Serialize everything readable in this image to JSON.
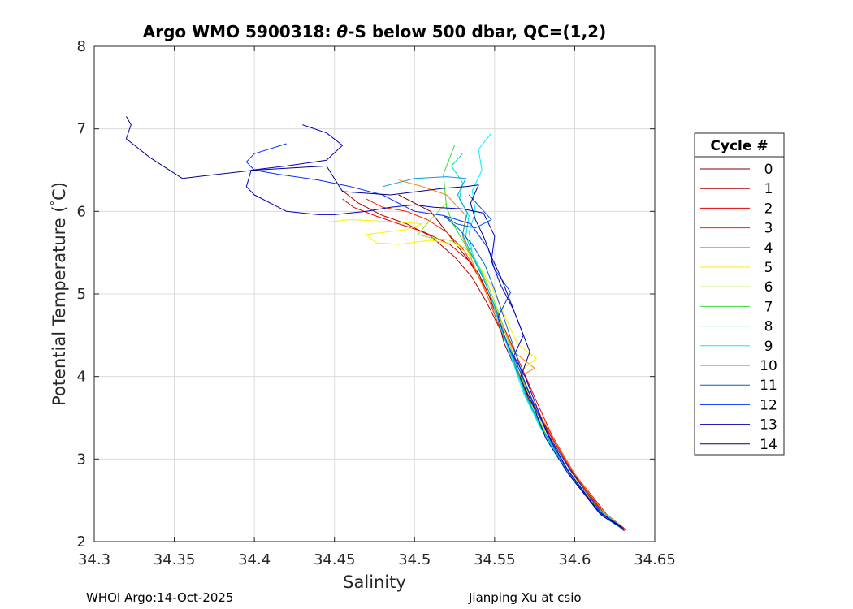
{
  "chart_data": {
    "type": "line",
    "title_prefix": "Argo WMO 5900318: ",
    "title_symbol": "θ",
    "title_suffix": "-S below 500 dbar,  QC=(1,2)",
    "xlabel": "Salinity",
    "ylabel_main": "Potential Temperature (",
    "ylabel_degree": "°",
    "ylabel_unit": "C)",
    "xlim": [
      34.3,
      34.65
    ],
    "ylim": [
      2,
      8
    ],
    "grid": true,
    "xticks": [
      "34.3",
      "34.35",
      "34.4",
      "34.45",
      "34.5",
      "34.55",
      "34.6",
      "34.65"
    ],
    "xtick_values": [
      34.3,
      34.35,
      34.4,
      34.45,
      34.5,
      34.55,
      34.6,
      34.65
    ],
    "yticks": [
      "2",
      "3",
      "4",
      "5",
      "6",
      "7",
      "8"
    ],
    "ytick_values": [
      2,
      3,
      4,
      5,
      6,
      7,
      8
    ],
    "legend_title": "Cycle #",
    "legend_position": "right-outside",
    "series": [
      {
        "name": "0",
        "color": "#800000",
        "x": [
          34.631,
          34.62,
          34.6,
          34.585,
          34.572,
          34.563,
          34.556,
          34.552,
          34.546,
          34.54,
          34.528,
          34.51,
          34.49
        ],
        "y": [
          2.13,
          2.3,
          2.8,
          3.3,
          3.7,
          4.1,
          4.4,
          4.7,
          5.0,
          5.25,
          5.55,
          6.0,
          6.2
        ]
      },
      {
        "name": "1",
        "color": "#b30000",
        "x": [
          34.632,
          34.618,
          34.598,
          34.583,
          34.57,
          34.562,
          34.554,
          34.545,
          34.536,
          34.525,
          34.51,
          34.495,
          34.48,
          34.465,
          34.455
        ],
        "y": [
          2.14,
          2.35,
          2.85,
          3.35,
          3.8,
          4.2,
          4.55,
          4.9,
          5.2,
          5.45,
          5.7,
          5.85,
          5.95,
          6.1,
          6.25
        ]
      },
      {
        "name": "2",
        "color": "#e60000",
        "x": [
          34.631,
          34.62,
          34.6,
          34.586,
          34.575,
          34.566,
          34.558,
          34.55,
          34.542,
          34.534,
          34.522,
          34.506,
          34.49,
          34.475,
          34.462,
          34.455
        ],
        "y": [
          2.16,
          2.33,
          2.82,
          3.28,
          3.75,
          4.15,
          4.5,
          4.85,
          5.15,
          5.4,
          5.6,
          5.75,
          5.85,
          5.95,
          6.05,
          6.15
        ]
      },
      {
        "name": "3",
        "color": "#ff2000",
        "x": [
          34.63,
          34.617,
          34.597,
          34.581,
          34.569,
          34.56,
          34.552,
          34.545,
          34.538,
          34.53,
          34.52,
          34.508,
          34.495,
          34.48,
          34.47
        ],
        "y": [
          2.15,
          2.35,
          2.9,
          3.4,
          3.85,
          4.3,
          4.65,
          5.0,
          5.3,
          5.55,
          5.75,
          5.9,
          6.0,
          6.05,
          6.15
        ]
      },
      {
        "name": "4",
        "color": "#ff8000",
        "x": [
          34.63,
          34.618,
          34.599,
          34.585,
          34.574,
          34.566,
          34.575,
          34.562,
          34.555,
          34.546,
          34.538,
          34.53,
          34.532,
          34.52,
          34.505,
          34.49
        ],
        "y": [
          2.17,
          2.36,
          2.85,
          3.3,
          3.7,
          4.0,
          4.1,
          4.3,
          4.6,
          4.95,
          5.3,
          5.7,
          5.95,
          6.2,
          6.3,
          6.38
        ]
      },
      {
        "name": "5",
        "color": "#ffee00",
        "x": [
          34.629,
          34.616,
          34.596,
          34.582,
          34.572,
          34.566,
          34.576,
          34.564,
          34.556,
          34.548,
          34.538,
          34.526,
          34.51,
          34.49,
          34.476,
          34.47,
          34.495,
          34.505,
          34.48,
          34.46,
          34.445
        ],
        "y": [
          2.18,
          2.36,
          2.86,
          3.32,
          3.72,
          4.06,
          4.22,
          4.4,
          4.75,
          5.1,
          5.4,
          5.6,
          5.65,
          5.6,
          5.62,
          5.72,
          5.78,
          5.85,
          5.88,
          5.9,
          5.87
        ]
      },
      {
        "name": "6",
        "color": "#90e000",
        "x": [
          34.628,
          34.615,
          34.596,
          34.582,
          34.572,
          34.565,
          34.558,
          34.552,
          34.546,
          34.54,
          34.532,
          34.522,
          34.51,
          34.502,
          34.51,
          34.52
        ],
        "y": [
          2.2,
          2.38,
          2.86,
          3.3,
          3.72,
          4.1,
          4.45,
          4.8,
          5.1,
          5.35,
          5.55,
          5.65,
          5.68,
          5.72,
          5.9,
          6.1
        ]
      },
      {
        "name": "7",
        "color": "#30e030",
        "x": [
          34.628,
          34.614,
          34.594,
          34.58,
          34.57,
          34.563,
          34.556,
          34.55,
          34.544,
          34.538,
          34.53,
          34.524,
          34.52,
          34.518,
          34.525
        ],
        "y": [
          2.19,
          2.4,
          2.9,
          3.35,
          3.75,
          4.15,
          4.5,
          4.85,
          5.15,
          5.4,
          5.65,
          5.85,
          6.05,
          6.45,
          6.8
        ]
      },
      {
        "name": "8",
        "color": "#00d8b0",
        "x": [
          34.627,
          34.613,
          34.593,
          34.579,
          34.569,
          34.562,
          34.555,
          34.549,
          34.543,
          34.537,
          34.532,
          34.534,
          34.528,
          34.53,
          34.523,
          34.53
        ],
        "y": [
          2.21,
          2.42,
          2.92,
          3.38,
          3.78,
          4.18,
          4.55,
          4.9,
          5.2,
          5.45,
          5.7,
          5.95,
          6.15,
          6.35,
          6.55,
          6.7
        ]
      },
      {
        "name": "9",
        "color": "#00f0ff",
        "x": [
          34.626,
          34.612,
          34.592,
          34.578,
          34.568,
          34.561,
          34.554,
          34.548,
          34.542,
          34.536,
          34.534,
          34.538,
          34.536,
          34.542,
          34.54,
          34.548
        ],
        "y": [
          2.22,
          2.44,
          2.95,
          3.4,
          3.8,
          4.2,
          4.58,
          4.95,
          5.25,
          5.5,
          5.75,
          6.0,
          6.25,
          6.5,
          6.75,
          6.95
        ]
      },
      {
        "name": "10",
        "color": "#00a0e0",
        "x": [
          34.627,
          34.613,
          34.594,
          34.58,
          34.57,
          34.563,
          34.556,
          34.55,
          34.543,
          34.536,
          34.53,
          34.533,
          34.527,
          34.532,
          34.52,
          34.5,
          34.48
        ],
        "y": [
          2.2,
          2.41,
          2.9,
          3.36,
          3.76,
          4.14,
          4.5,
          4.86,
          5.18,
          5.46,
          5.72,
          5.98,
          6.2,
          6.4,
          6.42,
          6.4,
          6.3
        ]
      },
      {
        "name": "11",
        "color": "#0060d0",
        "x": [
          34.631,
          34.618,
          34.598,
          34.585,
          34.576,
          34.568,
          34.562,
          34.556,
          34.55,
          34.544,
          34.536,
          34.527,
          34.518,
          34.526,
          34.538,
          34.548,
          34.534
        ],
        "y": [
          2.14,
          2.3,
          2.78,
          3.22,
          3.6,
          3.98,
          4.35,
          4.7,
          5.05,
          5.35,
          5.6,
          5.8,
          5.95,
          5.85,
          5.8,
          5.9,
          6.2
        ]
      },
      {
        "name": "12",
        "color": "#0030ff",
        "x": [
          34.63,
          34.617,
          34.598,
          34.584,
          34.574,
          34.566,
          34.558,
          34.552,
          34.56,
          34.55,
          34.546,
          34.535,
          34.518,
          34.5,
          34.49,
          34.48,
          34.46,
          34.44,
          34.415,
          34.4,
          34.395,
          34.4,
          34.42
        ],
        "y": [
          2.17,
          2.34,
          2.84,
          3.28,
          3.68,
          4.06,
          4.4,
          4.72,
          5.02,
          5.3,
          5.55,
          5.85,
          5.95,
          6.0,
          6.1,
          6.2,
          6.3,
          6.38,
          6.45,
          6.5,
          6.6,
          6.7,
          6.82
        ]
      },
      {
        "name": "13",
        "color": "#0000c0",
        "x": [
          34.629,
          34.615,
          34.596,
          34.583,
          34.575,
          34.569,
          34.562,
          34.568,
          34.562,
          34.554,
          34.548,
          34.55,
          34.543,
          34.53,
          34.512,
          34.5,
          34.485,
          34.47,
          34.45,
          34.44,
          34.42,
          34.4,
          34.395,
          34.398,
          34.42,
          34.445,
          34.455,
          34.445,
          34.43
        ],
        "y": [
          2.18,
          2.36,
          2.86,
          3.3,
          3.7,
          4.0,
          4.25,
          4.5,
          4.8,
          5.1,
          5.4,
          5.7,
          5.98,
          6.03,
          6.05,
          6.08,
          6.05,
          6.0,
          5.96,
          5.96,
          6.0,
          6.2,
          6.3,
          6.5,
          6.55,
          6.62,
          6.8,
          6.95,
          7.05
        ]
      },
      {
        "name": "14",
        "color": "#000090",
        "x": [
          34.63,
          34.616,
          34.596,
          34.582,
          34.574,
          34.566,
          34.572,
          34.566,
          34.56,
          34.554,
          34.548,
          34.543,
          34.538,
          34.535,
          34.54,
          34.532,
          34.518,
          34.502,
          34.485,
          34.47,
          34.455,
          34.445,
          34.4,
          34.355,
          34.335,
          34.32,
          34.323,
          34.32
        ],
        "y": [
          2.16,
          2.33,
          2.82,
          3.25,
          3.65,
          3.98,
          4.3,
          4.6,
          4.9,
          5.2,
          5.45,
          5.7,
          5.9,
          6.1,
          6.32,
          6.3,
          6.28,
          6.24,
          6.2,
          6.22,
          6.24,
          6.55,
          6.5,
          6.4,
          6.65,
          6.88,
          7.05,
          7.15
        ]
      }
    ]
  },
  "footer": {
    "left": "WHOI Argo:14-Oct-2025",
    "right": "Jianping Xu at csio"
  }
}
